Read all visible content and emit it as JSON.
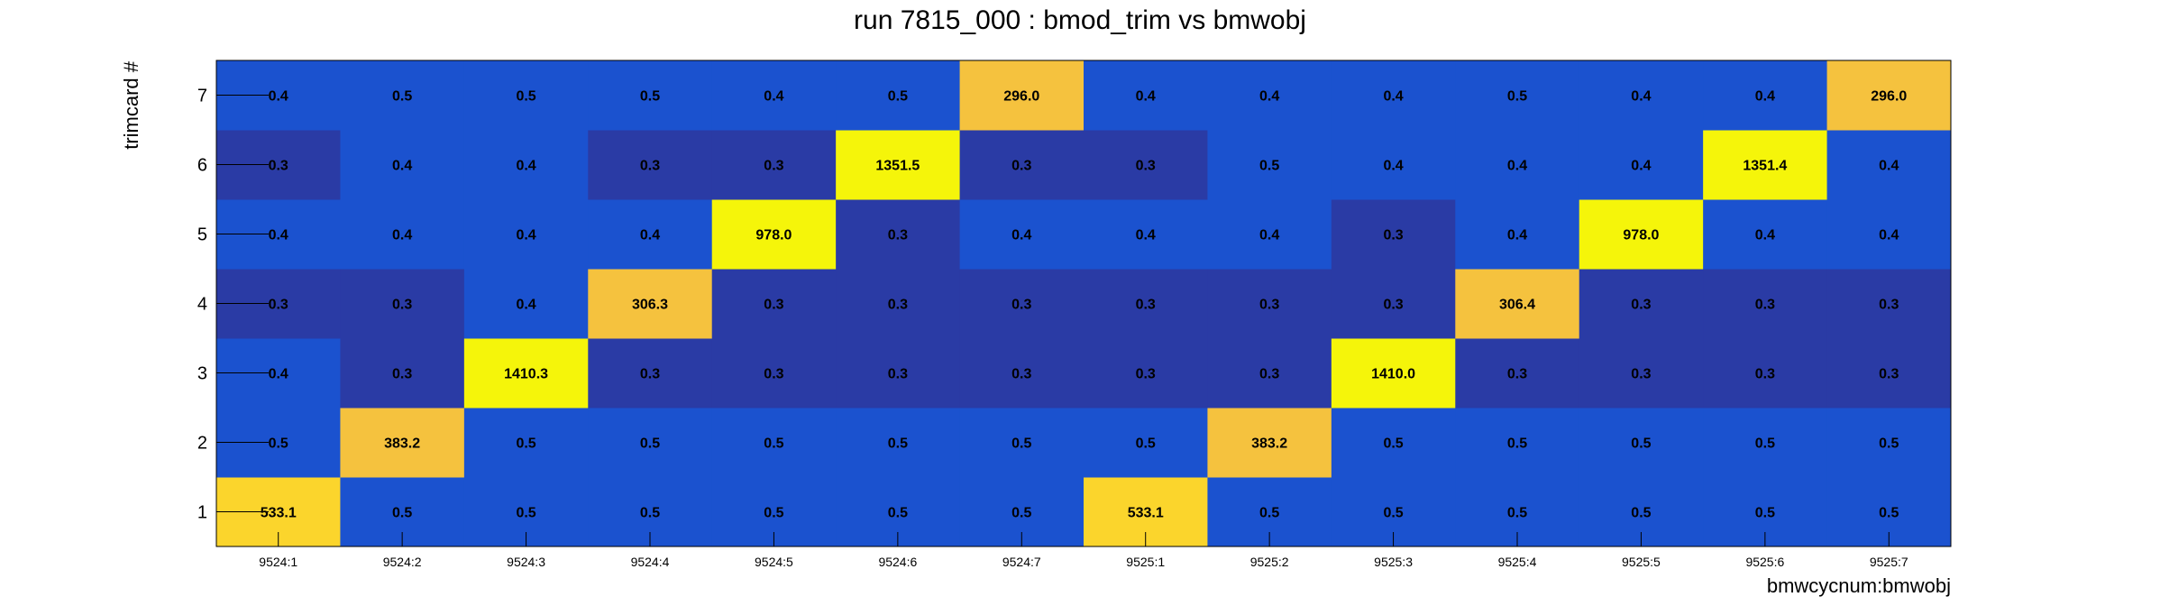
{
  "chart_data": {
    "type": "heatmap",
    "title": "run 7815_000 : bmod_trim vs bmwobj",
    "xlabel": "bmwcycnum:bmwobj",
    "ylabel": "trimcard #",
    "x_categories": [
      "9524:1",
      "9524:2",
      "9524:3",
      "9524:4",
      "9524:5",
      "9524:6",
      "9524:7",
      "9525:1",
      "9525:2",
      "9525:3",
      "9525:4",
      "9525:5",
      "9525:6",
      "9525:7"
    ],
    "y_categories": [
      "1",
      "2",
      "3",
      "4",
      "5",
      "6",
      "7"
    ],
    "values": [
      [
        "533.1",
        "0.5",
        "0.5",
        "0.5",
        "0.5",
        "0.5",
        "0.5",
        "533.1",
        "0.5",
        "0.5",
        "0.5",
        "0.5",
        "0.5",
        "0.5"
      ],
      [
        "0.5",
        "383.2",
        "0.5",
        "0.5",
        "0.5",
        "0.5",
        "0.5",
        "0.5",
        "383.2",
        "0.5",
        "0.5",
        "0.5",
        "0.5",
        "0.5"
      ],
      [
        "0.4",
        "0.3",
        "1410.3",
        "0.3",
        "0.3",
        "0.3",
        "0.3",
        "0.3",
        "0.3",
        "1410.0",
        "0.3",
        "0.3",
        "0.3",
        "0.3"
      ],
      [
        "0.3",
        "0.3",
        "0.4",
        "306.3",
        "0.3",
        "0.3",
        "0.3",
        "0.3",
        "0.3",
        "0.3",
        "306.4",
        "0.3",
        "0.3",
        "0.3"
      ],
      [
        "0.4",
        "0.4",
        "0.4",
        "0.4",
        "978.0",
        "0.3",
        "0.4",
        "0.4",
        "0.4",
        "0.3",
        "0.4",
        "978.0",
        "0.4",
        "0.4"
      ],
      [
        "0.3",
        "0.4",
        "0.4",
        "0.3",
        "0.3",
        "1351.5",
        "0.3",
        "0.3",
        "0.5",
        "0.4",
        "0.4",
        "0.4",
        "1351.4",
        "0.4"
      ],
      [
        "0.4",
        "0.5",
        "0.5",
        "0.5",
        "0.4",
        "0.5",
        "296.0",
        "0.4",
        "0.4",
        "0.4",
        "0.5",
        "0.4",
        "0.4",
        "296.0"
      ]
    ],
    "colors": {
      "low": "#2a3ba5",
      "mid": "#1b52cf",
      "high_a": "#f5c23e",
      "high_b": "#fbd52c",
      "high_c": "#f5f50a"
    },
    "grid": false
  }
}
